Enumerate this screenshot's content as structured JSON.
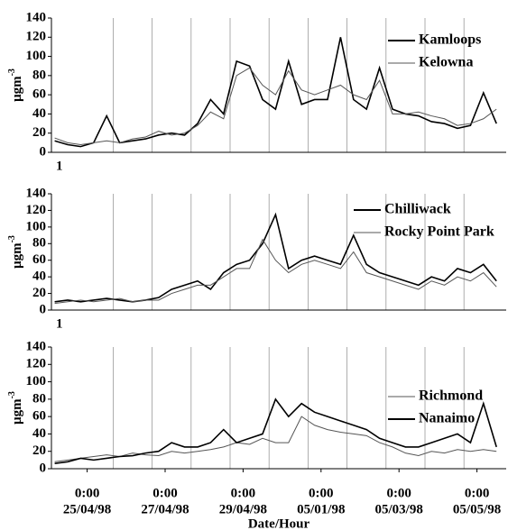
{
  "chart_data": [
    {
      "type": "line",
      "ylabel": "μgm",
      "ylabel_sup": "-3",
      "annotation": "1",
      "legend": "upper right",
      "x": [
        -20,
        -12,
        -4,
        4,
        12,
        20,
        28,
        36,
        44,
        52,
        60,
        68,
        76,
        84,
        92,
        100,
        108,
        116,
        124,
        132,
        140,
        148,
        156,
        164,
        172,
        180,
        188,
        196,
        204,
        212,
        220,
        228,
        236,
        244,
        252
      ],
      "xlim": [
        -22,
        258
      ],
      "xgrid": [
        16,
        40,
        64,
        88,
        112,
        136,
        160,
        184,
        208,
        232
      ],
      "ylim": [
        0,
        140
      ],
      "yticks": [
        0,
        20,
        40,
        60,
        80,
        100,
        120,
        140
      ],
      "series": [
        {
          "name": "Kamloops",
          "color": "#000000",
          "values": [
            12,
            8,
            6,
            10,
            38,
            10,
            12,
            14,
            18,
            20,
            18,
            30,
            55,
            40,
            95,
            90,
            55,
            45,
            95,
            50,
            55,
            55,
            120,
            55,
            45,
            88,
            45,
            40,
            38,
            32,
            30,
            25,
            28,
            62,
            30
          ]
        },
        {
          "name": "Kelowna",
          "color": "#555555",
          "values": [
            15,
            10,
            8,
            10,
            12,
            10,
            14,
            16,
            22,
            18,
            20,
            28,
            42,
            35,
            80,
            88,
            70,
            60,
            85,
            65,
            60,
            65,
            70,
            60,
            55,
            75,
            40,
            40,
            42,
            38,
            35,
            28,
            30,
            35,
            45
          ]
        }
      ]
    },
    {
      "type": "line",
      "ylabel": "μgm",
      "ylabel_sup": "-3",
      "annotation": "1",
      "legend": "upper right",
      "x": [
        -20,
        -12,
        -4,
        4,
        12,
        20,
        28,
        36,
        44,
        52,
        60,
        68,
        76,
        84,
        92,
        100,
        108,
        116,
        124,
        132,
        140,
        148,
        156,
        164,
        172,
        180,
        188,
        196,
        204,
        212,
        220,
        228,
        236,
        244,
        252
      ],
      "xlim": [
        -22,
        258
      ],
      "xgrid": [
        16,
        40,
        64,
        88,
        112,
        136,
        160,
        184,
        208,
        232
      ],
      "ylim": [
        0,
        140
      ],
      "yticks": [
        0,
        20,
        40,
        60,
        80,
        100,
        120,
        140
      ],
      "series": [
        {
          "name": "Chilliwack",
          "color": "#000000",
          "values": [
            10,
            12,
            10,
            12,
            14,
            12,
            10,
            12,
            15,
            25,
            30,
            35,
            25,
            45,
            55,
            60,
            80,
            115,
            50,
            60,
            65,
            60,
            55,
            90,
            55,
            45,
            40,
            35,
            30,
            40,
            35,
            50,
            45,
            55,
            35
          ]
        },
        {
          "name": "Rocky Point Park",
          "color": "#555555",
          "values": [
            8,
            10,
            12,
            10,
            12,
            14,
            10,
            12,
            12,
            20,
            25,
            30,
            30,
            40,
            50,
            50,
            85,
            60,
            45,
            55,
            60,
            55,
            50,
            70,
            45,
            40,
            35,
            30,
            25,
            35,
            30,
            40,
            35,
            45,
            28
          ]
        }
      ]
    },
    {
      "type": "line",
      "ylabel": "μgm",
      "ylabel_sup": "-3",
      "xlabel": "Date/Hour",
      "legend": "upper right",
      "x": [
        -20,
        -12,
        -4,
        4,
        12,
        20,
        28,
        36,
        44,
        52,
        60,
        68,
        76,
        84,
        92,
        100,
        108,
        116,
        124,
        132,
        140,
        148,
        156,
        164,
        172,
        180,
        188,
        196,
        204,
        212,
        220,
        228,
        236,
        244,
        252
      ],
      "xlim": [
        -22,
        258
      ],
      "xgrid": [
        16,
        40,
        64,
        88,
        112,
        136,
        160,
        184,
        208,
        232
      ],
      "xticks": [
        {
          "value": 0,
          "label": [
            "0:00",
            "25/04/98"
          ]
        },
        {
          "value": 48,
          "label": [
            "0:00",
            "27/04/98"
          ]
        },
        {
          "value": 96,
          "label": [
            "0:00",
            "29/04/98"
          ]
        },
        {
          "value": 144,
          "label": [
            "0:00",
            "05/01/98"
          ]
        },
        {
          "value": 192,
          "label": [
            "0:00",
            "05/03/98"
          ]
        },
        {
          "value": 240,
          "label": [
            "0:00",
            "05/05/98"
          ]
        }
      ],
      "ylim": [
        0,
        140
      ],
      "yticks": [
        0,
        20,
        40,
        60,
        80,
        100,
        120,
        140
      ],
      "series": [
        {
          "name": "Richmond",
          "color": "#555555",
          "values": [
            8,
            10,
            12,
            14,
            16,
            14,
            18,
            16,
            15,
            20,
            18,
            20,
            22,
            25,
            30,
            28,
            35,
            30,
            30,
            60,
            50,
            45,
            42,
            40,
            38,
            30,
            25,
            18,
            15,
            20,
            18,
            22,
            20,
            22,
            20
          ]
        },
        {
          "name": "Nanaimo",
          "color": "#000000",
          "values": [
            6,
            8,
            12,
            10,
            12,
            14,
            15,
            18,
            20,
            30,
            25,
            25,
            30,
            45,
            30,
            35,
            40,
            80,
            60,
            75,
            65,
            60,
            55,
            50,
            45,
            35,
            30,
            25,
            25,
            30,
            35,
            40,
            30,
            75,
            25
          ]
        }
      ]
    }
  ]
}
